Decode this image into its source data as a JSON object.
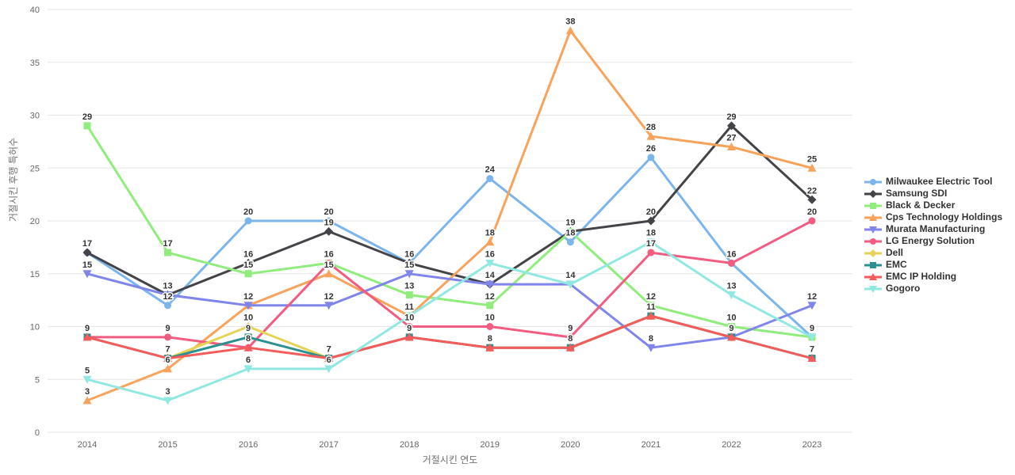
{
  "chart_data": {
    "type": "line",
    "title": "",
    "xlabel": "거절시킨 연도",
    "ylabel": "거절시킨 후행 특허수",
    "x": [
      2014,
      2015,
      2016,
      2017,
      2018,
      2019,
      2020,
      2021,
      2022,
      2023
    ],
    "ylim": [
      0,
      40
    ],
    "yticks": [
      0,
      5,
      10,
      15,
      20,
      25,
      30,
      35,
      40
    ],
    "grid": "horizontal",
    "legend_position": "right",
    "series": [
      {
        "name": "Milwaukee Electric Tool",
        "color": "#7cb5ec",
        "marker": "circle",
        "values": [
          17,
          12,
          20,
          20,
          16,
          24,
          18,
          26,
          16,
          9
        ]
      },
      {
        "name": "Samsung SDI",
        "color": "#434348",
        "marker": "diamond",
        "values": [
          17,
          13,
          16,
          19,
          16,
          14,
          19,
          20,
          29,
          22
        ]
      },
      {
        "name": "Black & Decker",
        "color": "#90ed7d",
        "marker": "square",
        "values": [
          29,
          17,
          15,
          16,
          13,
          12,
          19,
          12,
          10,
          9
        ]
      },
      {
        "name": "Cps Technology Holdings",
        "color": "#f7a35c",
        "marker": "triangle",
        "values": [
          3,
          6,
          12,
          15,
          11,
          18,
          38,
          28,
          27,
          25
        ]
      },
      {
        "name": "Murata Manufacturing",
        "color": "#8085e9",
        "marker": "triangle-down",
        "values": [
          15,
          13,
          12,
          12,
          15,
          14,
          14,
          8,
          9,
          12
        ]
      },
      {
        "name": "LG Energy Solution",
        "color": "#f15c80",
        "marker": "circle",
        "values": [
          9,
          9,
          8,
          16,
          10,
          10,
          9,
          17,
          16,
          20
        ]
      },
      {
        "name": "Dell",
        "color": "#e4d354",
        "marker": "diamond",
        "values": [
          null,
          7,
          10,
          7,
          9,
          8,
          8,
          11,
          9,
          null
        ]
      },
      {
        "name": "EMC",
        "color": "#2b908f",
        "marker": "square",
        "values": [
          9,
          7,
          9,
          7,
          9,
          8,
          8,
          11,
          9,
          7
        ]
      },
      {
        "name": "EMC IP Holding",
        "color": "#f45b5b",
        "marker": "triangle",
        "values": [
          9,
          7,
          8,
          7,
          9,
          8,
          8,
          11,
          9,
          7
        ]
      },
      {
        "name": "Gogoro",
        "color": "#91e8e1",
        "marker": "triangle-down",
        "values": [
          5,
          3,
          6,
          6,
          11,
          16,
          14,
          18,
          13,
          9
        ]
      }
    ]
  }
}
